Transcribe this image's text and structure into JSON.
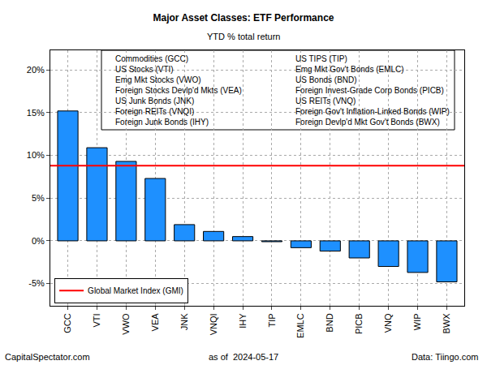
{
  "chart_data": {
    "type": "bar",
    "title": "Major Asset Classes: ETF Performance",
    "subtitle": "YTD % total return",
    "categories": [
      "GCC",
      "VTI",
      "VWO",
      "VEA",
      "JNK",
      "VNQI",
      "IHY",
      "TIP",
      "EMLC",
      "BND",
      "PICB",
      "VNQ",
      "WIP",
      "BWX"
    ],
    "values": [
      15.2,
      10.9,
      9.3,
      7.3,
      1.9,
      1.1,
      0.5,
      -0.1,
      -0.8,
      -1.2,
      -2.0,
      -3.0,
      -3.7,
      -4.8
    ],
    "color": "#1e90ff",
    "ylim": [
      -7.6,
      22.3
    ],
    "yticks": [
      {
        "value": -5,
        "label": "-5%"
      },
      {
        "value": 0,
        "label": "0%"
      },
      {
        "value": 5,
        "label": "5%"
      },
      {
        "value": 10,
        "label": "10%"
      },
      {
        "value": 15,
        "label": "15%"
      },
      {
        "value": 20,
        "label": "20%"
      }
    ],
    "grid": true,
    "reference_line": {
      "name": "Global Market Index (GMI)",
      "value": 8.8,
      "color": "#ff0000"
    },
    "legend": "bottom left",
    "key_labels": [
      "Commodities (GCC)",
      "US Stocks (VTI)",
      "Emg Mkt Stocks (VWO)",
      "Foreign Stocks Devlp'd Mkts (VEA)",
      "US Junk Bonds (JNK)",
      "Foreign REITs (VNQI)",
      "Foreign Junk Bonds (IHY)",
      "US TIPS (TIP)",
      "Emg Mkt Gov't Bonds (EMLC)",
      "US Bonds (BND)",
      "Foreign Invest-Grade Corp Bonds (PICB)",
      "US REITs (VNQ)",
      "Foreign Gov't Inflation-Linked Bonds (WIP)",
      "Foreign Devlp'd Mkt Gov't Bonds (BWX)"
    ],
    "footer": {
      "left": "CapitalSpectator.com",
      "center": "as of  2024-05-17",
      "right": "Data: Tiingo.com"
    }
  }
}
